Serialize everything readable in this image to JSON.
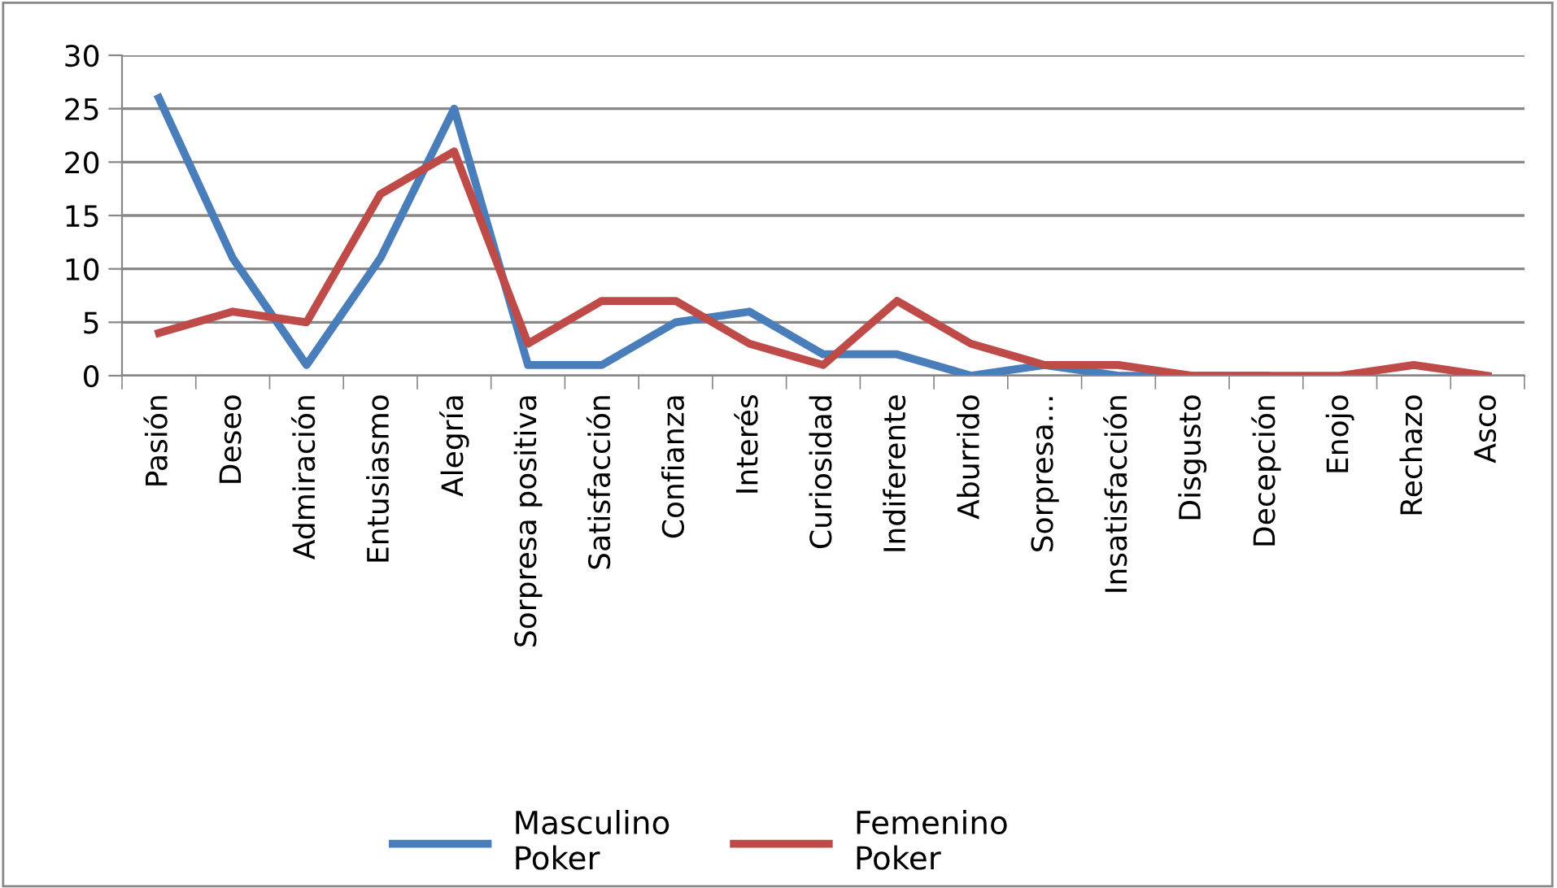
{
  "chart_data": {
    "type": "line",
    "categories": [
      "Pasión",
      "Deseo",
      "Admiración",
      "Entusiasmo",
      "Alegría",
      "Sorpresa positiva",
      "Satisfacción",
      "Confianza",
      "Interés",
      "Curiosidad",
      "Indiferente",
      "Aburrido",
      "Sorpresa…",
      "Insatisfacción",
      "Disgusto",
      "Decepción",
      "Enojo",
      "Rechazo",
      "Asco"
    ],
    "series": [
      {
        "name": "Masculino\nPoker",
        "color": "#4a7ebb",
        "values": [
          26,
          11,
          1,
          11,
          25,
          1,
          1,
          5,
          6,
          2,
          2,
          0,
          1,
          0,
          0,
          0,
          null,
          null,
          null
        ]
      },
      {
        "name": "Femenino\nPoker",
        "color": "#be4b48",
        "values": [
          4,
          6,
          5,
          17,
          21,
          3,
          7,
          7,
          3,
          1,
          7,
          3,
          1,
          1,
          0,
          0,
          0,
          1,
          0
        ]
      }
    ],
    "ylim": [
      0,
      30
    ],
    "yticks": [
      0,
      5,
      10,
      15,
      20,
      25,
      30
    ],
    "grid": "y",
    "legend": "bottom",
    "marker": "none",
    "line_style": "solid"
  }
}
